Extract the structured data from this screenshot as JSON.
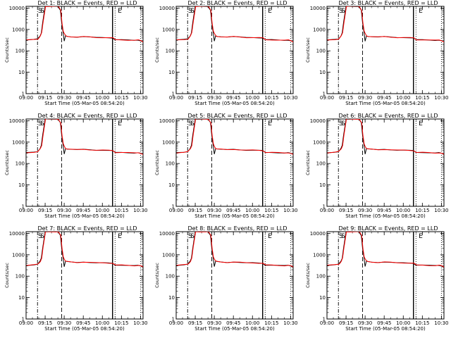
{
  "chart_data": [
    {
      "title": "Det 1: BLACK = Events, RED = LLD"
    },
    {
      "title": "Det 2: BLACK = Events, RED = LLD"
    },
    {
      "title": "Det 3: BLACK = Events, RED = LLD"
    },
    {
      "title": "Det 4: BLACK = Events, RED = LLD"
    },
    {
      "title": "Det 5: BLACK = Events, RED = LLD"
    },
    {
      "title": "Det 6: BLACK = Events, RED = LLD"
    },
    {
      "title": "Det 7: BLACK = Events, RED = LLD"
    },
    {
      "title": "Det 8: BLACK = Events, RED = LLD"
    },
    {
      "title": "Det 9: BLACK = Events, RED = LLD"
    }
  ],
  "shared": {
    "type": "line",
    "xlabel": "Start Time (05-Mar-05 08:54:20)",
    "ylabel": "Counts/sec",
    "y_scale": "log",
    "ylim": [
      1,
      12000
    ],
    "xlim": [
      "09:00",
      "10:32"
    ],
    "x_ticks": [
      "09:00",
      "09:15",
      "09:30",
      "09:45",
      "10:00",
      "10:15",
      "10:30"
    ],
    "y_ticks": [
      "1",
      "10",
      "100",
      "1000",
      "10000"
    ],
    "markers": [
      "S",
      "S",
      "E"
    ],
    "series": [
      {
        "legend": "BLACK",
        "color": "#000000"
      },
      {
        "legend": "RED",
        "color": "#ff0000"
      }
    ],
    "x": [
      "09:00",
      "09:06",
      "09:09",
      "09:10",
      "09:11",
      "09:12",
      "09:13",
      "09:15",
      "09:18",
      "09:23",
      "09:25",
      "09:27",
      "09:28",
      "09:29",
      "09:30",
      "09:31",
      "09:32",
      "09:35",
      "09:40",
      "09:45",
      "09:50",
      "09:55",
      "10:00",
      "10:05",
      "10:08",
      "10:10",
      "10:15",
      "10:20",
      "10:25",
      "10:28",
      "10:30",
      "10:32"
    ],
    "values": [
      320,
      340,
      360,
      420,
      500,
      700,
      2000,
      12000,
      12000,
      12000,
      12000,
      8000,
      2000,
      800,
      600,
      500,
      480,
      460,
      440,
      460,
      440,
      420,
      420,
      410,
      400,
      330,
      330,
      320,
      310,
      320,
      300,
      260
    ],
    "vlines": [
      {
        "t": "09:09",
        "style": "dash-dot"
      },
      {
        "t": "09:28",
        "style": "dash"
      },
      {
        "t": "10:08",
        "style": "solid"
      },
      {
        "t": "10:10",
        "style": "dotted"
      },
      {
        "t": "10:30",
        "style": "dotted"
      }
    ]
  }
}
